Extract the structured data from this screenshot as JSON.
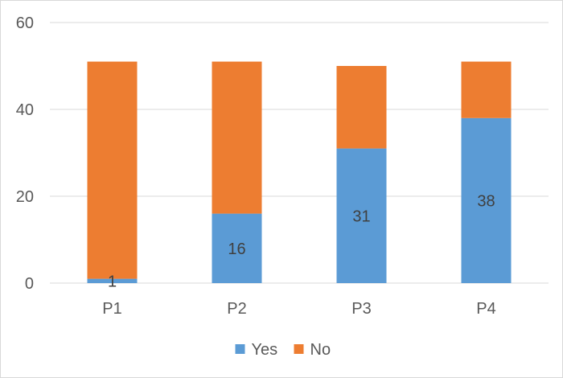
{
  "chart_data": {
    "type": "bar",
    "stacked": true,
    "title": "",
    "xlabel": "",
    "ylabel": "",
    "categories": [
      "P1",
      "P2",
      "P3",
      "P4"
    ],
    "series": [
      {
        "name": "Yes",
        "color": "#5B9BD5",
        "values": [
          1,
          16,
          31,
          38
        ],
        "data_labels": [
          "1",
          "16",
          "31",
          "38"
        ]
      },
      {
        "name": "No",
        "color": "#ED7D31",
        "values": [
          50,
          35,
          19,
          13
        ],
        "data_labels": []
      }
    ],
    "ylim": [
      0,
      60
    ],
    "yticks": [
      0,
      20,
      40,
      60
    ],
    "grid": true,
    "legend": "bottom"
  }
}
